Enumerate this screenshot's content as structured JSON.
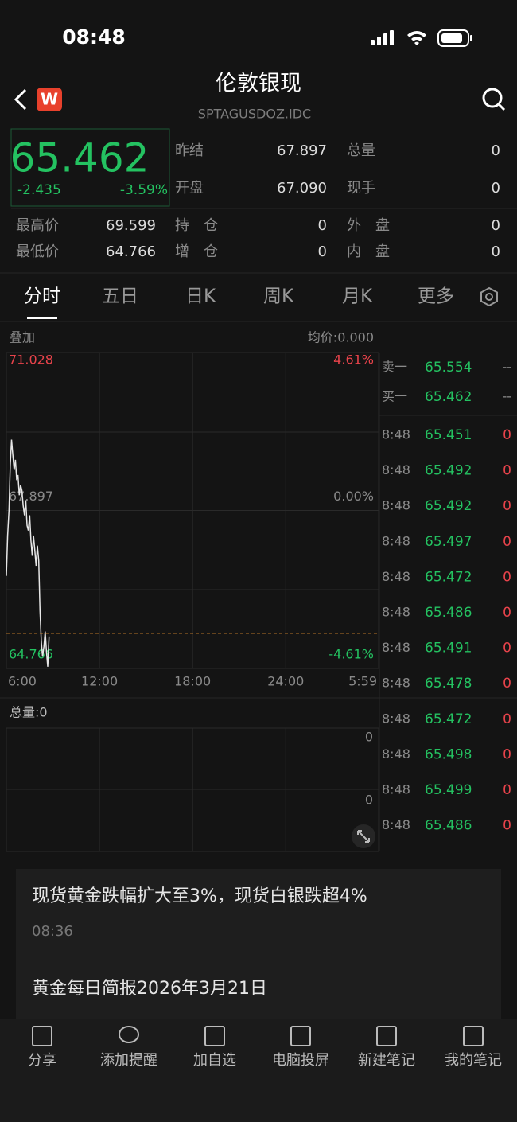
{
  "status_bar": {
    "time": "08:48"
  },
  "header": {
    "title": "伦敦银现",
    "code": "SPTAGUSDOZ.IDC"
  },
  "quote": {
    "price": 65.462,
    "change": -2.435,
    "change_pct": "-3.59%"
  },
  "stats": [
    {
      "label": "昨结",
      "value": "67.897"
    },
    {
      "label": "总量",
      "value": "0"
    },
    {
      "label": "开盘",
      "value": "67.090"
    },
    {
      "label": "现手",
      "value": "0"
    },
    {
      "label": "最高价",
      "value": "69.599"
    },
    {
      "label": "持　仓",
      "value": "0"
    },
    {
      "label": "外　盘",
      "value": "0"
    },
    {
      "label": "最低价",
      "value": "64.766"
    },
    {
      "label": "增　仓",
      "value": "0"
    },
    {
      "label": "内　盘",
      "value": "0"
    }
  ],
  "tabs": [
    "分时",
    "五日",
    "日K",
    "周K",
    "月K",
    "更多"
  ],
  "active_tab": 0,
  "chart": {
    "overlay_label": "叠加",
    "avg_price": "均价:0.000",
    "x": [
      0,
      5,
      10,
      15,
      20,
      25,
      30,
      35,
      40,
      45,
      50,
      55,
      60,
      65,
      70,
      75,
      80,
      85,
      90,
      95,
      100,
      105,
      110,
      115,
      120,
      125,
      130,
      135,
      140,
      145,
      150,
      155,
      160,
      165
    ],
    "values": [
      66.6,
      67.4,
      67.9,
      68.8,
      69.3,
      69.0,
      68.7,
      68.9,
      68.5,
      68.6,
      68.2,
      68.4,
      68.3,
      68.0,
      67.8,
      68.1,
      67.6,
      67.5,
      67.8,
      67.3,
      67.0,
      67.4,
      67.1,
      66.8,
      67.2,
      66.9,
      65.9,
      65.3,
      65.0,
      65.2,
      65.5,
      65.1,
      64.8,
      65.4
    ],
    "line_color": "#e6e6e6",
    "xlim": [
      0,
      1439
    ],
    "xticks": [
      {
        "value": 0,
        "label": "6:00"
      },
      {
        "value": 360,
        "label": "12:00"
      },
      {
        "value": 720,
        "label": "18:00"
      },
      {
        "value": 1080,
        "label": "24:00"
      },
      {
        "value": 1439,
        "label": "5:59"
      }
    ],
    "ylim": [
      64.766,
      71.028
    ],
    "yticks": [
      64.766,
      67.897,
      71.028
    ],
    "pct_ticks": [
      {
        "value": -4.61,
        "label": "-4.61%"
      },
      {
        "value": 0,
        "label": "0.00%"
      },
      {
        "value": 4.61,
        "label": "4.61%"
      }
    ]
  },
  "volume": {
    "title": "总量:0",
    "labels": [
      "0",
      "0"
    ]
  },
  "order_book": [
    {
      "label": "卖一",
      "price": "65.554",
      "volume": "--"
    },
    {
      "label": "买一",
      "price": "65.462",
      "volume": "--"
    }
  ],
  "trades": [
    {
      "time": "8:48",
      "price": "65.451",
      "volume": "0"
    },
    {
      "time": "8:48",
      "price": "65.492",
      "volume": "0"
    },
    {
      "time": "8:48",
      "price": "65.492",
      "volume": "0"
    },
    {
      "time": "8:48",
      "price": "65.497",
      "volume": "0"
    },
    {
      "time": "8:48",
      "price": "65.472",
      "volume": "0"
    },
    {
      "time": "8:48",
      "price": "65.486",
      "volume": "0"
    },
    {
      "time": "8:48",
      "price": "65.491",
      "volume": "0"
    },
    {
      "time": "8:48",
      "price": "65.478",
      "volume": "0"
    },
    {
      "time": "8:48",
      "price": "65.472",
      "volume": "0"
    },
    {
      "time": "8:48",
      "price": "65.498",
      "volume": "0"
    },
    {
      "time": "8:48",
      "price": "65.499",
      "volume": "0"
    },
    {
      "time": "8:48",
      "price": "65.486",
      "volume": "0"
    }
  ],
  "news": [
    {
      "title": "现货黄金跌幅扩大至3%，现货白银跌超4%",
      "time": "08:36"
    },
    {
      "title": "黄金每日简报2026年3月21日"
    }
  ],
  "toolbar": [
    "分享",
    "添加提醒",
    "加自选",
    "电脑投屏",
    "新建笔记",
    "我的笔记"
  ]
}
